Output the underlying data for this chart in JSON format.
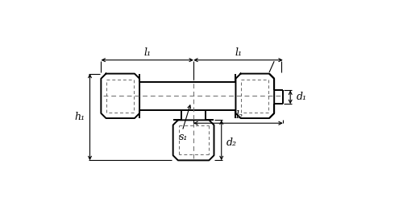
{
  "bg_color": "#ffffff",
  "line_color": "#000000",
  "dashed_color": "#666666",
  "figsize": [
    5.0,
    2.5
  ],
  "dpi": 100,
  "labels": {
    "l1_left": "l₁",
    "l1_right": "l₁",
    "l2": "l₂",
    "d1": "d₁",
    "d2": "d₂",
    "h1": "h₁",
    "s1": "s₁"
  }
}
